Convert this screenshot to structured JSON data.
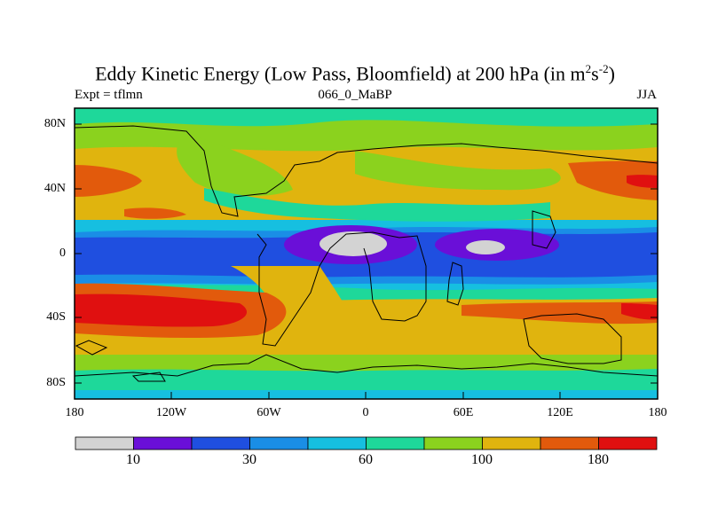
{
  "title": {
    "main": "Eddy Kinetic Energy (Low Pass, Bloomfield) at 200 hPa (in m",
    "sup1": "2",
    "mid": "s",
    "sup2": "-2",
    "close": ")"
  },
  "subtitle_left": "Expt = tflmn",
  "subtitle_center": "066_0_MaBP",
  "subtitle_right": "JJA",
  "axes": {
    "y_labels": [
      "80N",
      "40N",
      "0",
      "40S",
      "80S"
    ],
    "x_labels": [
      "180",
      "120W",
      "60W",
      "0",
      "60E",
      "120E",
      "180"
    ]
  },
  "colorbar": {
    "colors": [
      "#d3d3d3",
      "#6a0fd8",
      "#1f4fe0",
      "#1a8ee6",
      "#16bfe0",
      "#1ed89a",
      "#8bd21e",
      "#e0b40e",
      "#e25a0c",
      "#e01010"
    ],
    "labels": [
      "10",
      "30",
      "60",
      "100",
      "180"
    ]
  },
  "chart_data": {
    "type": "heatmap",
    "variable": "Eddy Kinetic Energy (Low Pass, Bloomfield)",
    "level": "200 hPa",
    "units": "m2 s-2",
    "experiment": "tflmn",
    "case": "066_0_MaBP",
    "season": "JJA",
    "x_range": [
      -180,
      180
    ],
    "y_range": [
      -90,
      90
    ],
    "color_levels": [
      "10",
      "30",
      "60",
      "100",
      "180"
    ],
    "features": [
      {
        "label": "minimum (white) over Atlantic/Africa equator",
        "lon": -15,
        "lat": 8,
        "value_below": 10
      },
      {
        "label": "minimum (white) over Indian Ocean equator",
        "lon": 70,
        "lat": 3,
        "value_below": 10
      },
      {
        "label": "maximum (red) Southern Hemisphere Pacific",
        "lon": -160,
        "lat": -40,
        "value_above": 180
      },
      {
        "label": "maximum (red) Northern Hemisphere Pacific",
        "lon": 165,
        "lat": 40,
        "value_above": 180
      }
    ]
  }
}
